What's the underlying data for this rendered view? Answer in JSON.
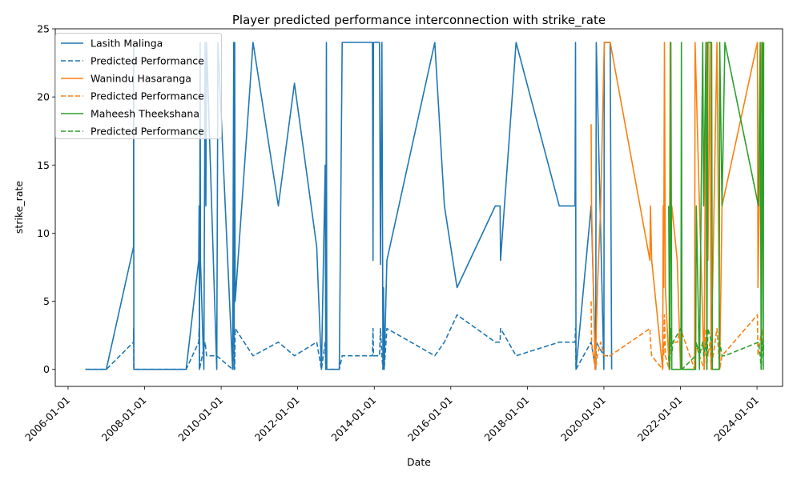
{
  "chart_data": {
    "type": "line",
    "title": "Player predicted performance interconnection with strike_rate",
    "xlabel": "Date",
    "ylabel": "strike_rate",
    "xlim": [
      "2005-09-01",
      "2024-09-01"
    ],
    "ylim": [
      -1.25,
      25.0
    ],
    "x_ticks": [
      "2006-01-01",
      "2008-01-01",
      "2010-01-01",
      "2012-01-01",
      "2014-01-01",
      "2016-01-01",
      "2018-01-01",
      "2020-01-01",
      "2022-01-01",
      "2024-01-01"
    ],
    "y_ticks": [
      0,
      5,
      10,
      15,
      20,
      25
    ],
    "grid": false,
    "legend_position": "upper-left",
    "series": [
      {
        "name": "Lasith Malinga",
        "color": "#1f77b4",
        "dash": "solid",
        "points": [
          [
            "2006-06-15",
            0
          ],
          [
            "2007-01-01",
            0
          ],
          [
            "2007-09-18",
            9
          ],
          [
            "2007-09-19",
            24
          ],
          [
            "2007-09-20",
            12
          ],
          [
            "2007-09-21",
            0
          ],
          [
            "2009-02-01",
            0
          ],
          [
            "2009-06-01",
            8
          ],
          [
            "2009-06-05",
            12
          ],
          [
            "2009-06-08",
            0
          ],
          [
            "2009-06-15",
            24
          ],
          [
            "2009-06-18",
            8
          ],
          [
            "2009-07-20",
            0
          ],
          [
            "2009-08-01",
            24
          ],
          [
            "2009-08-08",
            12
          ],
          [
            "2009-08-15",
            24
          ],
          [
            "2009-11-20",
            0
          ],
          [
            "2009-12-01",
            24
          ],
          [
            "2010-01-05",
            18
          ],
          [
            "2010-04-20",
            0
          ],
          [
            "2010-05-01",
            24
          ],
          [
            "2010-05-05",
            0
          ],
          [
            "2010-05-10",
            24
          ],
          [
            "2010-05-15",
            5
          ],
          [
            "2010-11-01",
            24
          ],
          [
            "2011-07-01",
            12
          ],
          [
            "2011-12-01",
            21
          ],
          [
            "2012-07-01",
            9
          ],
          [
            "2012-08-15",
            0
          ],
          [
            "2012-09-20",
            15
          ],
          [
            "2012-09-25",
            0
          ],
          [
            "2012-10-01",
            24
          ],
          [
            "2012-10-05",
            0
          ],
          [
            "2013-02-01",
            0
          ],
          [
            "2013-03-01",
            24
          ],
          [
            "2013-12-15",
            24
          ],
          [
            "2013-12-20",
            8
          ],
          [
            "2013-12-25",
            24
          ],
          [
            "2014-02-20",
            24
          ],
          [
            "2014-03-01",
            7.7
          ],
          [
            "2014-03-15",
            24
          ],
          [
            "2014-03-25",
            0
          ],
          [
            "2014-03-30",
            6
          ],
          [
            "2014-04-05",
            0
          ],
          [
            "2014-05-01",
            8
          ],
          [
            "2015-08-01",
            24
          ],
          [
            "2015-11-01",
            12
          ],
          [
            "2016-03-01",
            6
          ],
          [
            "2017-03-01",
            12
          ],
          [
            "2017-04-15",
            12
          ],
          [
            "2017-04-20",
            8
          ],
          [
            "2017-09-15",
            24
          ],
          [
            "2018-11-01",
            12
          ],
          [
            "2019-04-01",
            12
          ],
          [
            "2019-04-05",
            24
          ],
          [
            "2019-04-10",
            0
          ],
          [
            "2019-09-01",
            12
          ],
          [
            "2019-10-15",
            0
          ],
          [
            "2019-10-20",
            24
          ],
          [
            "2020-01-01",
            0
          ],
          [
            "2020-01-05",
            24
          ],
          [
            "2020-03-01",
            24
          ],
          [
            "2020-03-15",
            0
          ]
        ]
      },
      {
        "name": "Predicted Performance",
        "color": "#1f77b4",
        "dash": "dashed",
        "points": [
          [
            "2006-06-15",
            0
          ],
          [
            "2007-01-01",
            0
          ],
          [
            "2007-09-18",
            2
          ],
          [
            "2007-09-19",
            3
          ],
          [
            "2007-09-21",
            0
          ],
          [
            "2009-02-01",
            0
          ],
          [
            "2009-06-01",
            2
          ],
          [
            "2009-06-05",
            3
          ],
          [
            "2009-06-08",
            0
          ],
          [
            "2009-08-01",
            2
          ],
          [
            "2009-08-15",
            1
          ],
          [
            "2009-11-20",
            1
          ],
          [
            "2010-04-20",
            0
          ],
          [
            "2010-05-01",
            3
          ],
          [
            "2010-05-10",
            0
          ],
          [
            "2010-05-15",
            3
          ],
          [
            "2010-11-01",
            1
          ],
          [
            "2011-07-01",
            2
          ],
          [
            "2011-12-01",
            1
          ],
          [
            "2012-07-01",
            2
          ],
          [
            "2012-08-15",
            0
          ],
          [
            "2012-09-20",
            2
          ],
          [
            "2012-09-25",
            0
          ],
          [
            "2013-02-01",
            0
          ],
          [
            "2013-03-01",
            1
          ],
          [
            "2013-12-15",
            1
          ],
          [
            "2013-12-20",
            3
          ],
          [
            "2013-12-25",
            1
          ],
          [
            "2014-02-20",
            1
          ],
          [
            "2014-03-01",
            3
          ],
          [
            "2014-03-15",
            1
          ],
          [
            "2014-03-25",
            0
          ],
          [
            "2014-03-30",
            3
          ],
          [
            "2014-04-05",
            0
          ],
          [
            "2014-05-01",
            3
          ],
          [
            "2015-08-01",
            1
          ],
          [
            "2015-11-01",
            2
          ],
          [
            "2016-03-01",
            4
          ],
          [
            "2017-03-01",
            2
          ],
          [
            "2017-04-15",
            2
          ],
          [
            "2017-04-20",
            3
          ],
          [
            "2017-09-15",
            1
          ],
          [
            "2018-11-01",
            2
          ],
          [
            "2019-04-01",
            2
          ],
          [
            "2019-04-05",
            3
          ],
          [
            "2019-04-10",
            0
          ],
          [
            "2019-09-01",
            2
          ],
          [
            "2019-10-15",
            0
          ],
          [
            "2019-10-20",
            2
          ],
          [
            "2020-01-01",
            1
          ],
          [
            "2020-03-01",
            1
          ],
          [
            "2020-03-15",
            1
          ]
        ]
      },
      {
        "name": "Wanindu Hasaranga",
        "color": "#ff7f0e",
        "dash": "solid",
        "points": [
          [
            "2019-09-01",
            18
          ],
          [
            "2019-09-05",
            12
          ],
          [
            "2019-10-10",
            0
          ],
          [
            "2019-11-01",
            6
          ],
          [
            "2019-12-01",
            12
          ],
          [
            "2020-01-05",
            24
          ],
          [
            "2020-03-01",
            24
          ],
          [
            "2021-03-15",
            8
          ],
          [
            "2021-03-20",
            12
          ],
          [
            "2021-04-01",
            8
          ],
          [
            "2021-07-15",
            0
          ],
          [
            "2021-07-20",
            12
          ],
          [
            "2021-07-25",
            6
          ],
          [
            "2021-08-01",
            24
          ],
          [
            "2021-08-10",
            6
          ],
          [
            "2021-09-15",
            0
          ],
          [
            "2021-09-25",
            24
          ],
          [
            "2021-10-01",
            8
          ],
          [
            "2021-10-10",
            12
          ],
          [
            "2021-12-01",
            8
          ],
          [
            "2022-01-01",
            0
          ],
          [
            "2022-05-15",
            0
          ],
          [
            "2022-05-20",
            24
          ],
          [
            "2022-07-01",
            12
          ],
          [
            "2022-08-15",
            0
          ],
          [
            "2022-09-01",
            24
          ],
          [
            "2022-09-10",
            24
          ],
          [
            "2022-09-20",
            8
          ],
          [
            "2022-10-10",
            24
          ],
          [
            "2022-10-20",
            0
          ],
          [
            "2022-12-15",
            24
          ],
          [
            "2023-01-10",
            0
          ],
          [
            "2023-02-01",
            12
          ],
          [
            "2024-01-05",
            24
          ],
          [
            "2024-01-10",
            6
          ],
          [
            "2024-02-15",
            24
          ],
          [
            "2024-02-20",
            12
          ],
          [
            "2024-03-01",
            24
          ]
        ]
      },
      {
        "name": "Predicted Performance",
        "color": "#ff7f0e",
        "dash": "dashed",
        "points": [
          [
            "2019-09-01",
            5
          ],
          [
            "2019-09-05",
            2
          ],
          [
            "2019-10-10",
            0
          ],
          [
            "2019-11-01",
            1
          ],
          [
            "2019-12-01",
            2
          ],
          [
            "2020-01-05",
            1
          ],
          [
            "2020-03-01",
            1
          ],
          [
            "2021-03-15",
            3
          ],
          [
            "2021-03-20",
            2
          ],
          [
            "2021-04-01",
            1
          ],
          [
            "2021-07-15",
            0
          ],
          [
            "2021-07-20",
            2
          ],
          [
            "2021-07-25",
            1
          ],
          [
            "2021-08-01",
            4
          ],
          [
            "2021-08-10",
            1
          ],
          [
            "2021-09-15",
            0
          ],
          [
            "2021-09-25",
            3
          ],
          [
            "2021-10-01",
            3
          ],
          [
            "2021-10-10",
            2
          ],
          [
            "2021-12-01",
            2
          ],
          [
            "2022-01-01",
            3
          ],
          [
            "2022-05-15",
            0
          ],
          [
            "2022-05-20",
            2
          ],
          [
            "2022-07-01",
            1
          ],
          [
            "2022-08-15",
            0
          ],
          [
            "2022-09-01",
            3
          ],
          [
            "2022-09-10",
            2
          ],
          [
            "2022-09-20",
            1
          ],
          [
            "2022-10-10",
            2
          ],
          [
            "2022-10-20",
            0
          ],
          [
            "2022-12-15",
            3
          ],
          [
            "2023-01-10",
            0
          ],
          [
            "2023-02-01",
            1
          ],
          [
            "2024-01-05",
            4
          ],
          [
            "2024-01-10",
            1
          ],
          [
            "2024-02-15",
            3
          ],
          [
            "2024-02-20",
            2
          ],
          [
            "2024-03-01",
            2
          ]
        ]
      },
      {
        "name": "Maheesh Theekshana",
        "color": "#2ca02c",
        "dash": "solid",
        "points": [
          [
            "2021-09-10",
            12
          ],
          [
            "2021-09-20",
            0
          ],
          [
            "2021-10-01",
            24
          ],
          [
            "2021-10-10",
            0
          ],
          [
            "2021-10-20",
            0
          ],
          [
            "2022-01-05",
            0
          ],
          [
            "2022-01-10",
            24
          ],
          [
            "2022-01-15",
            0
          ],
          [
            "2022-05-25",
            0
          ],
          [
            "2022-06-01",
            12
          ],
          [
            "2022-07-01",
            0
          ],
          [
            "2022-08-01",
            24
          ],
          [
            "2022-08-10",
            12
          ],
          [
            "2022-09-01",
            24
          ],
          [
            "2022-09-10",
            0
          ],
          [
            "2022-09-20",
            24
          ],
          [
            "2022-10-25",
            24
          ],
          [
            "2022-11-01",
            0
          ],
          [
            "2023-01-05",
            0
          ],
          [
            "2023-01-10",
            24
          ],
          [
            "2023-02-01",
            12
          ],
          [
            "2023-03-01",
            24
          ],
          [
            "2024-01-15",
            12
          ],
          [
            "2024-02-01",
            24
          ],
          [
            "2024-02-10",
            0
          ],
          [
            "2024-02-20",
            24
          ],
          [
            "2024-03-01",
            0
          ],
          [
            "2024-03-05",
            24
          ]
        ]
      },
      {
        "name": "Predicted Performance",
        "color": "#2ca02c",
        "dash": "dashed",
        "points": [
          [
            "2021-09-10",
            1
          ],
          [
            "2021-09-20",
            0
          ],
          [
            "2021-10-01",
            3
          ],
          [
            "2021-10-10",
            1
          ],
          [
            "2021-10-20",
            2
          ],
          [
            "2022-01-05",
            3
          ],
          [
            "2022-01-10",
            1
          ],
          [
            "2022-01-15",
            0
          ],
          [
            "2022-05-25",
            1
          ],
          [
            "2022-06-01",
            2
          ],
          [
            "2022-07-01",
            1
          ],
          [
            "2022-08-01",
            2
          ],
          [
            "2022-08-10",
            1
          ],
          [
            "2022-09-01",
            2
          ],
          [
            "2022-09-10",
            0
          ],
          [
            "2022-09-20",
            3
          ],
          [
            "2022-10-25",
            2
          ],
          [
            "2022-11-01",
            0
          ],
          [
            "2023-01-05",
            0
          ],
          [
            "2023-01-10",
            2
          ],
          [
            "2023-02-01",
            1
          ],
          [
            "2023-03-01",
            1
          ],
          [
            "2024-01-15",
            2
          ],
          [
            "2024-02-01",
            1
          ],
          [
            "2024-02-10",
            0
          ],
          [
            "2024-02-20",
            2
          ],
          [
            "2024-03-01",
            1
          ],
          [
            "2024-03-05",
            2
          ]
        ]
      }
    ]
  }
}
